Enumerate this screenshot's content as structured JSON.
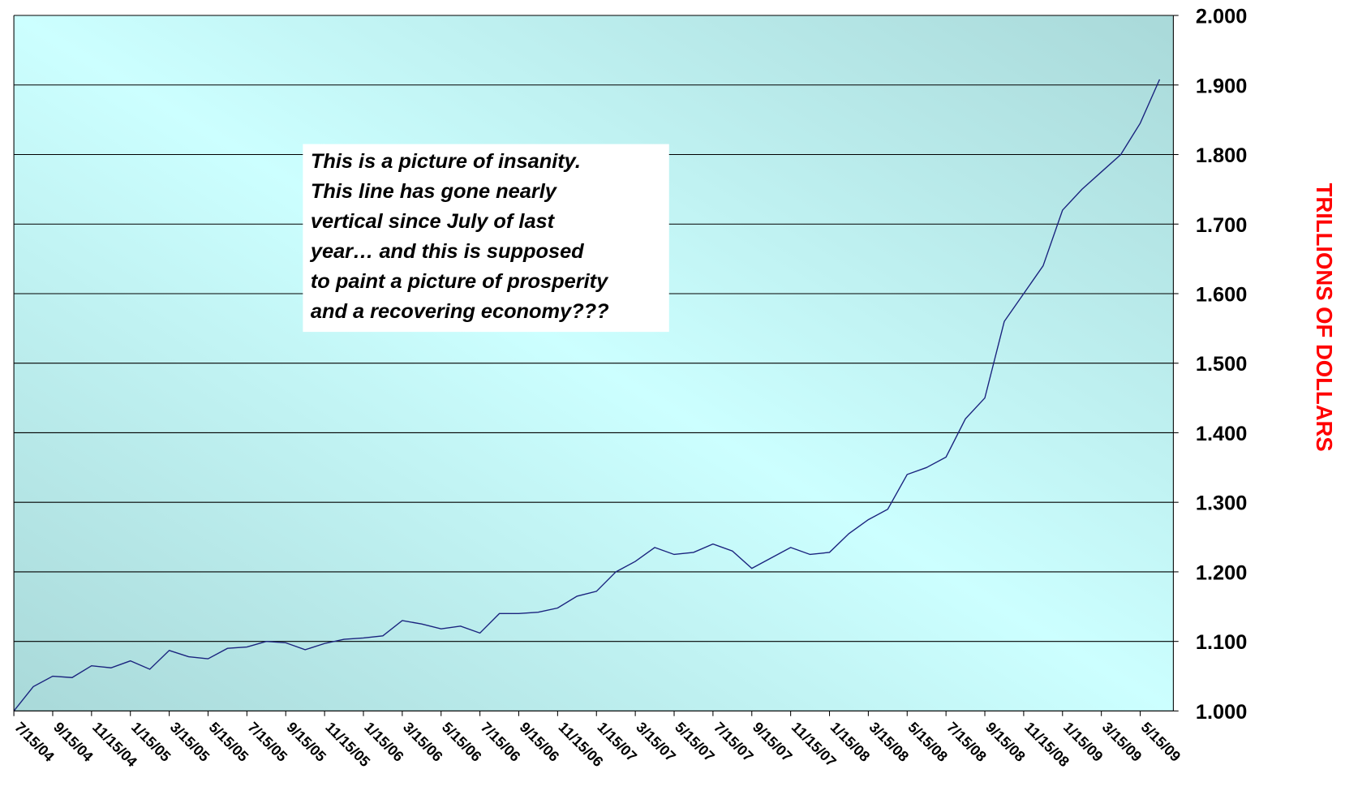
{
  "chart_data": {
    "type": "line",
    "y_axis_label": "TRILLIONS OF DOLLARS",
    "annotation": [
      "This is a picture of insanity.",
      "This line has gone nearly",
      "vertical since July of last",
      "year… and this is supposed",
      "to paint a picture of prosperity",
      "and a recovering economy???"
    ],
    "categories": [
      "7/15/04",
      null,
      "9/15/04",
      null,
      "11/15/04",
      null,
      "1/15/05",
      null,
      "3/15/05",
      null,
      "5/15/05",
      null,
      "7/15/05",
      null,
      "9/15/05",
      null,
      "11/15/05",
      null,
      "1/15/06",
      null,
      "3/15/06",
      null,
      "5/15/06",
      null,
      "7/15/06",
      null,
      "9/15/06",
      null,
      "11/15/06",
      null,
      "1/15/07",
      null,
      "3/15/07",
      null,
      "5/15/07",
      null,
      "7/15/07",
      null,
      "9/15/07",
      null,
      "11/15/07",
      null,
      "1/15/08",
      null,
      "3/15/08",
      null,
      "5/15/08",
      null,
      "7/15/08",
      null,
      "9/15/08",
      null,
      "11/15/08",
      null,
      "1/15/09",
      null,
      "3/15/09",
      null,
      "5/15/09",
      null
    ],
    "values": [
      1.0,
      1.035,
      1.05,
      1.048,
      1.065,
      1.062,
      1.072,
      1.06,
      1.087,
      1.078,
      1.075,
      1.09,
      1.092,
      1.1,
      1.098,
      1.088,
      1.097,
      1.103,
      1.105,
      1.108,
      1.13,
      1.125,
      1.118,
      1.122,
      1.112,
      1.14,
      1.14,
      1.142,
      1.148,
      1.165,
      1.172,
      1.2,
      1.215,
      1.235,
      1.225,
      1.228,
      1.24,
      1.23,
      1.205,
      1.22,
      1.235,
      1.225,
      1.228,
      1.255,
      1.275,
      1.29,
      1.34,
      1.35,
      1.365,
      1.42,
      1.45,
      1.56,
      1.6,
      1.64,
      1.72,
      1.75,
      1.775,
      1.8,
      1.845,
      1.908
    ],
    "color": "#1a237e",
    "ylim": [
      1,
      2
    ],
    "yticks": [
      {
        "value": 1,
        "label": "1.000"
      },
      {
        "value": 1.1,
        "label": "1.100"
      },
      {
        "value": 1.2,
        "label": "1.200"
      },
      {
        "value": 1.3,
        "label": "1.300"
      },
      {
        "value": 1.4,
        "label": "1.400"
      },
      {
        "value": 1.5,
        "label": "1.500"
      },
      {
        "value": 1.6,
        "label": "1.600"
      },
      {
        "value": 1.7,
        "label": "1.700"
      },
      {
        "value": 1.8,
        "label": "1.800"
      },
      {
        "value": 1.9,
        "label": "1.900"
      },
      {
        "value": 2,
        "label": "2.000"
      }
    ],
    "grid": true,
    "y_axis_side": "right",
    "axis_label_color": "#ff0000"
  }
}
